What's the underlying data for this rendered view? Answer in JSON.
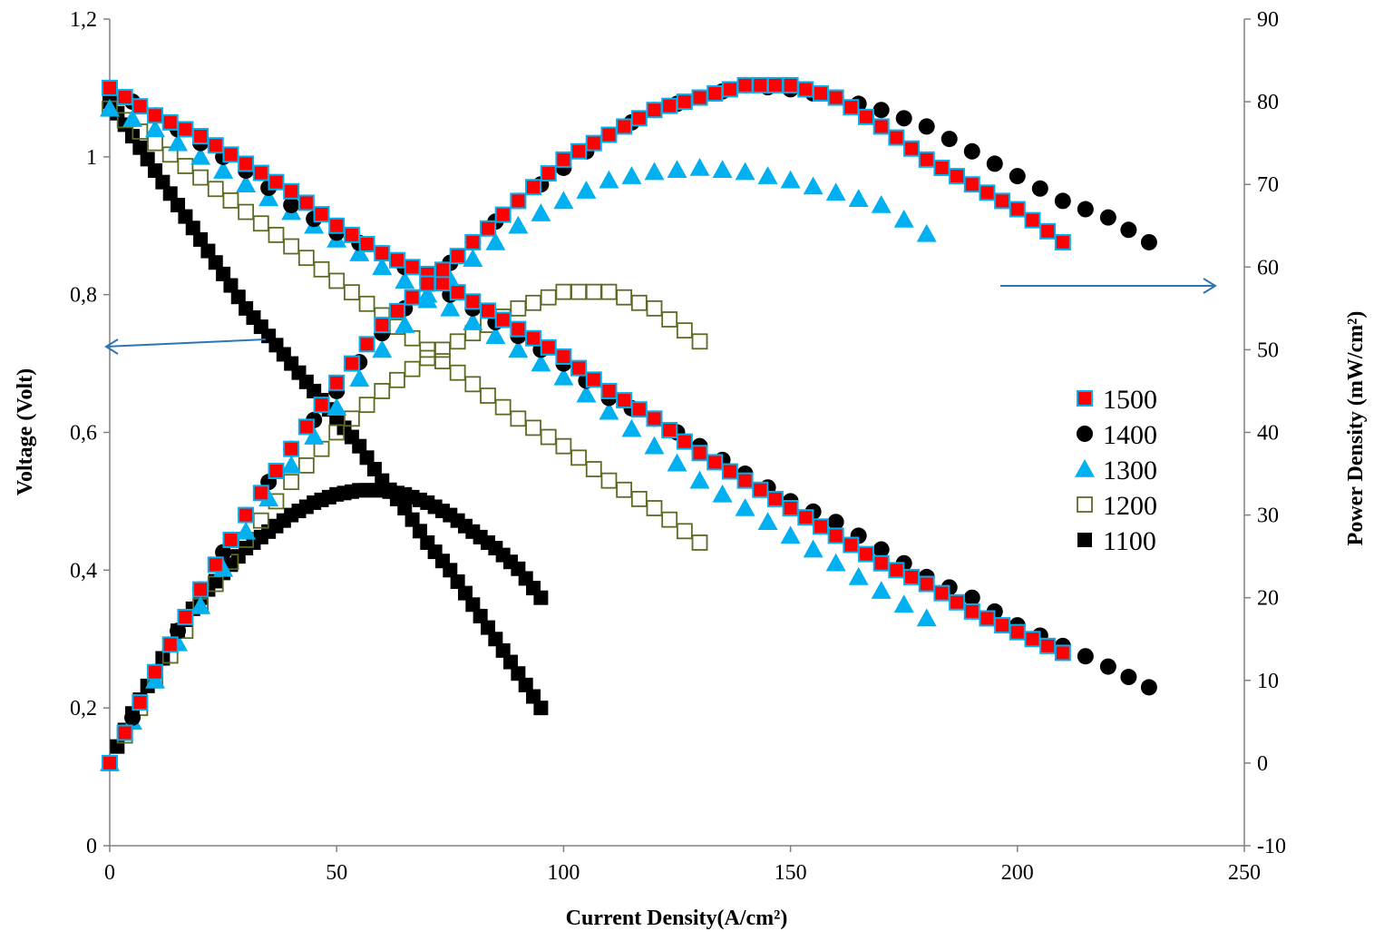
{
  "chart_data": {
    "type": "scatter",
    "title": "",
    "xlabel": "Current Density(A/cm²)",
    "ylabel_left": "Voltage (Volt)",
    "ylabel_right": "Power Density (mW/cm²)",
    "xlim": [
      0,
      250
    ],
    "ylim_left": [
      0,
      1.2
    ],
    "ylim_right": [
      -10,
      90
    ],
    "x_ticks": [
      "0",
      "50",
      "100",
      "150",
      "200",
      "250"
    ],
    "y_left_ticks": [
      "0",
      "0,2",
      "0,4",
      "0,6",
      "0,8",
      "1",
      "1,2"
    ],
    "y_right_ticks": [
      "-10",
      "0",
      "10",
      "20",
      "30",
      "40",
      "50",
      "60",
      "70",
      "80",
      "90"
    ],
    "grid": false,
    "legend_position": "right",
    "annotations": [
      {
        "type": "arrow",
        "direction": "left",
        "points_to_axis": "left (Voltage)"
      },
      {
        "type": "arrow",
        "direction": "right",
        "points_to_axis": "right (Power Density)"
      }
    ],
    "series": [
      {
        "name": "1500",
        "marker": "square",
        "fill": "#ff0000",
        "stroke": "#00b0f0",
        "voltage": {
          "x": [
            0,
            10,
            20,
            30,
            40,
            50,
            60,
            70,
            80,
            90,
            100,
            110,
            120,
            130,
            140,
            150,
            160,
            170,
            180,
            190,
            200,
            210
          ],
          "y": [
            1.1,
            1.06,
            1.03,
            0.99,
            0.95,
            0.9,
            0.86,
            0.83,
            0.79,
            0.75,
            0.71,
            0.66,
            0.62,
            0.57,
            0.53,
            0.49,
            0.45,
            0.41,
            0.38,
            0.34,
            0.31,
            0.28
          ]
        },
        "power": {
          "x": [
            0,
            10,
            20,
            30,
            40,
            50,
            60,
            70,
            80,
            90,
            100,
            110,
            120,
            130,
            140,
            150,
            160,
            170,
            180,
            190,
            200,
            210
          ],
          "y": [
            0,
            11,
            21,
            30,
            38,
            46,
            53,
            58,
            63,
            68,
            73,
            76,
            79,
            80.5,
            82,
            82,
            80.5,
            77,
            73,
            70,
            67,
            63
          ]
        }
      },
      {
        "name": "1400",
        "marker": "circle",
        "fill": "#000000",
        "stroke": "#000000",
        "voltage": {
          "x": [
            0,
            10,
            20,
            30,
            40,
            50,
            60,
            70,
            80,
            90,
            100,
            110,
            120,
            130,
            140,
            150,
            160,
            170,
            180,
            190,
            200,
            210,
            220,
            229
          ],
          "y": [
            1.1,
            1.06,
            1.02,
            0.98,
            0.93,
            0.89,
            0.86,
            0.82,
            0.78,
            0.74,
            0.7,
            0.65,
            0.62,
            0.58,
            0.54,
            0.5,
            0.47,
            0.43,
            0.39,
            0.36,
            0.32,
            0.29,
            0.26,
            0.23
          ]
        },
        "power": {
          "x": [
            0,
            10,
            20,
            30,
            40,
            50,
            60,
            70,
            80,
            90,
            100,
            110,
            120,
            130,
            140,
            150,
            160,
            170,
            180,
            190,
            200,
            210,
            220,
            229
          ],
          "y": [
            0,
            11,
            21,
            30,
            38,
            45,
            52,
            58,
            63,
            68,
            72,
            76,
            79,
            80.5,
            82,
            81.5,
            80.5,
            79,
            77,
            74,
            71,
            68,
            66,
            63
          ]
        }
      },
      {
        "name": "1300",
        "marker": "triangle",
        "fill": "#00b0f0",
        "stroke": "#00b0f0",
        "voltage": {
          "x": [
            0,
            10,
            20,
            30,
            40,
            50,
            60,
            70,
            80,
            90,
            100,
            110,
            120,
            130,
            140,
            150,
            160,
            170,
            180
          ],
          "y": [
            1.07,
            1.04,
            1.0,
            0.96,
            0.92,
            0.88,
            0.84,
            0.8,
            0.76,
            0.72,
            0.68,
            0.63,
            0.58,
            0.53,
            0.49,
            0.45,
            0.41,
            0.37,
            0.33
          ]
        },
        "power": {
          "x": [
            0,
            10,
            20,
            30,
            40,
            50,
            60,
            70,
            80,
            90,
            100,
            110,
            120,
            130,
            140,
            150,
            160,
            170,
            180
          ],
          "y": [
            0,
            10,
            19,
            28,
            36,
            43,
            50,
            56,
            61,
            65,
            68,
            70.5,
            71.5,
            72,
            71.5,
            70.5,
            69,
            67.5,
            64
          ]
        }
      },
      {
        "name": "1200",
        "marker": "open-square",
        "fill": "none",
        "stroke": "#5a6b22",
        "voltage": {
          "x": [
            0,
            10,
            20,
            30,
            40,
            50,
            60,
            70,
            80,
            90,
            100,
            110,
            120,
            130
          ],
          "y": [
            1.07,
            1.02,
            0.97,
            0.92,
            0.87,
            0.82,
            0.77,
            0.72,
            0.67,
            0.62,
            0.58,
            0.53,
            0.49,
            0.44
          ]
        },
        "power": {
          "x": [
            0,
            10,
            20,
            30,
            40,
            50,
            60,
            70,
            80,
            90,
            100,
            110,
            120,
            130
          ],
          "y": [
            0,
            10,
            19,
            27,
            34,
            40,
            45,
            49,
            52,
            55,
            57,
            57,
            55,
            51
          ]
        }
      },
      {
        "name": "1100",
        "marker": "square",
        "fill": "#000000",
        "stroke": "#000000",
        "voltage": {
          "x": [
            0,
            5,
            10,
            15,
            20,
            25,
            30,
            35,
            40,
            45,
            50,
            55,
            60,
            65,
            70,
            75,
            80,
            85,
            90,
            95
          ],
          "y": [
            1.08,
            1.03,
            0.98,
            0.93,
            0.88,
            0.83,
            0.78,
            0.74,
            0.7,
            0.66,
            0.62,
            0.58,
            0.53,
            0.49,
            0.44,
            0.4,
            0.35,
            0.3,
            0.25,
            0.2
          ]
        },
        "power": {
          "x": [
            0,
            5,
            10,
            15,
            20,
            25,
            30,
            35,
            40,
            45,
            50,
            55,
            60,
            65,
            70,
            75,
            80,
            85,
            90,
            95
          ],
          "y": [
            0,
            6,
            11,
            16,
            20,
            23,
            26,
            28,
            30,
            31.5,
            32.5,
            33,
            33,
            32.5,
            31.5,
            30,
            28,
            26,
            23.5,
            20
          ]
        }
      }
    ]
  }
}
